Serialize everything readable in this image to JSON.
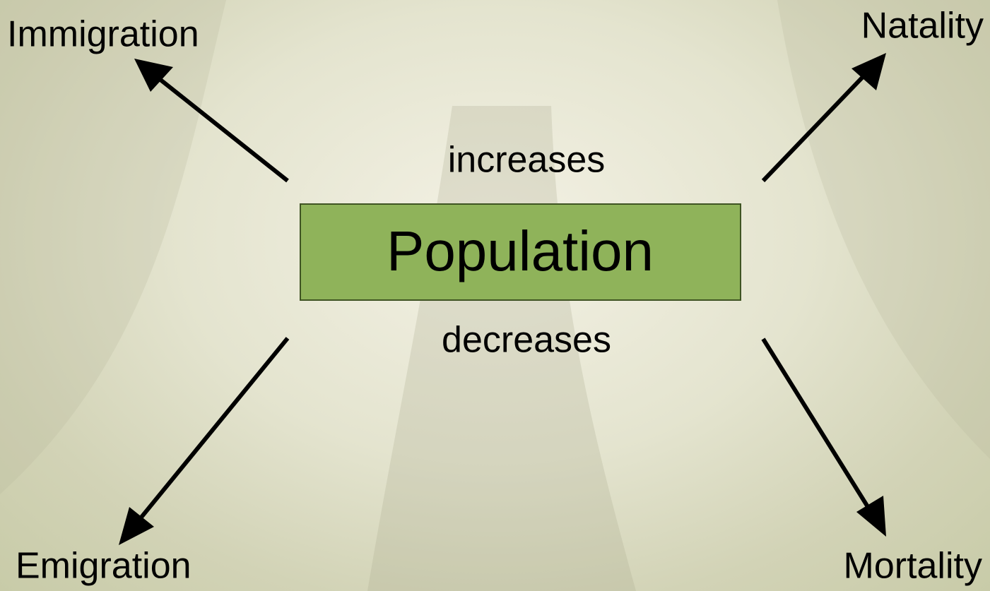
{
  "center": {
    "label": "Population"
  },
  "labels": {
    "increases": "increases",
    "decreases": "decreases"
  },
  "nodes": [
    {
      "label": "Immigration"
    },
    {
      "label": "Natality"
    },
    {
      "label": "Emigration"
    },
    {
      "label": "Mortality"
    }
  ]
}
